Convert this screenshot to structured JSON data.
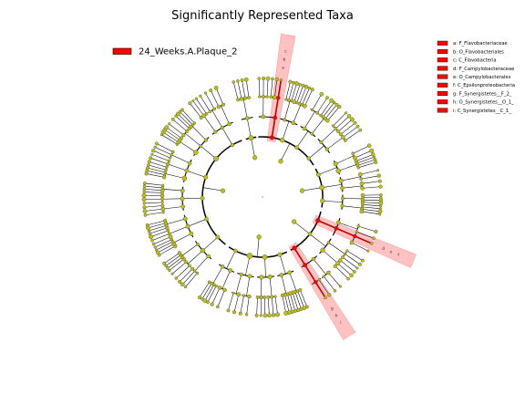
{
  "chart_data": {
    "type": "cladogram",
    "title": "Significantly Represented Taxa",
    "groups": [
      {
        "name": "24_Weeks.A.Plaque_2",
        "color": "#ff0000"
      }
    ],
    "node_color": "#bfbf1a",
    "highlighted_node_color": "#ff0000",
    "highlight_band_color": "#ff4c4c",
    "biomarkers": [
      {
        "letter": "a",
        "label": "a: F_Flavobacteriaceae"
      },
      {
        "letter": "b",
        "label": "b: O_Flavobacteriales"
      },
      {
        "letter": "c",
        "label": "c: C_Flavobacteria"
      },
      {
        "letter": "d",
        "label": "d: F_Campylobacteraceae"
      },
      {
        "letter": "e",
        "label": "e: O_Campylobacterales"
      },
      {
        "letter": "f",
        "label": "f: C_Epsilonproteobacteria"
      },
      {
        "letter": "g",
        "label": "g: F_Synergistetes__F_2_"
      },
      {
        "letter": "h",
        "label": "h: O_Synergistetes__O_1_"
      },
      {
        "letter": "i",
        "label": "i: C_Synergistetes__C_1_"
      }
    ],
    "clades": [
      {
        "letters": [
          "a",
          "b",
          "c"
        ]
      },
      {
        "letters": [
          "d",
          "e",
          "f"
        ]
      },
      {
        "letters": [
          "g",
          "h",
          "i"
        ]
      }
    ]
  }
}
